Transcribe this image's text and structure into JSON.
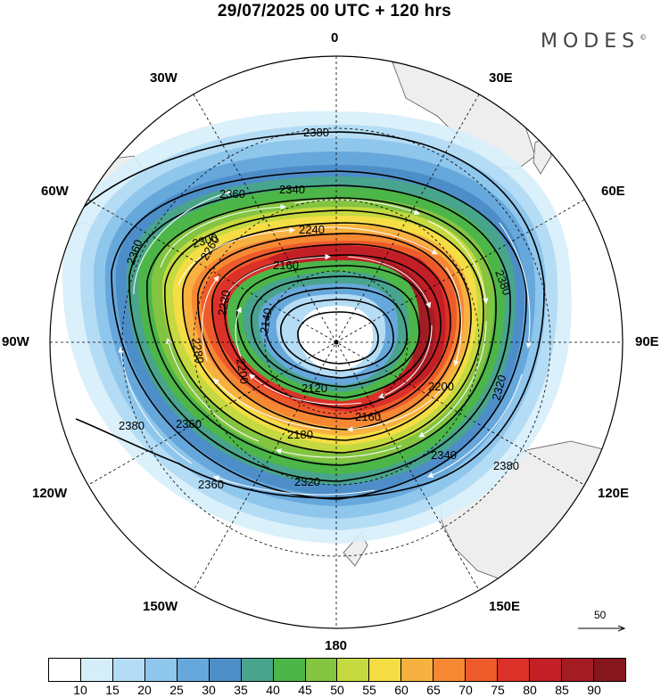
{
  "header": {
    "title": "29/07/2025  00 UTC  + 120 hrs",
    "brand": "MODES",
    "brand_mark": "©"
  },
  "map": {
    "projection": "south-polar-stereographic",
    "longitude_labels": [
      {
        "id": "0",
        "text": "0"
      },
      {
        "id": "30e",
        "text": "30E"
      },
      {
        "id": "60e",
        "text": "60E"
      },
      {
        "id": "90e",
        "text": "90E"
      },
      {
        "id": "120e",
        "text": "120E"
      },
      {
        "id": "150e",
        "text": "150E"
      },
      {
        "id": "180",
        "text": "180"
      },
      {
        "id": "150w",
        "text": "150W"
      },
      {
        "id": "120w",
        "text": "120W"
      },
      {
        "id": "90w",
        "text": "90W"
      },
      {
        "id": "60w",
        "text": "60W"
      },
      {
        "id": "30w",
        "text": "30W"
      }
    ],
    "contour_labels": [
      "2380",
      "2360",
      "2340",
      "2320",
      "2300",
      "2280",
      "2260",
      "2240",
      "2220",
      "2200",
      "2180",
      "2160",
      "2140",
      "2120"
    ],
    "reference_vector": {
      "value": "50"
    }
  },
  "colorbar": {
    "colors": [
      "#ffffff",
      "#d6eefa",
      "#b4dcf5",
      "#8fc6ec",
      "#67a8dc",
      "#4d8ec9",
      "#49a48d",
      "#4cb648",
      "#83c441",
      "#c5d940",
      "#f5dd46",
      "#f7b140",
      "#f68834",
      "#ee5b2b",
      "#dc3129",
      "#c21f26",
      "#a31c23",
      "#85171c"
    ],
    "tick_labels": [
      "10",
      "15",
      "20",
      "25",
      "30",
      "35",
      "40",
      "45",
      "50",
      "55",
      "60",
      "65",
      "70",
      "75",
      "80",
      "85",
      "90"
    ]
  }
}
